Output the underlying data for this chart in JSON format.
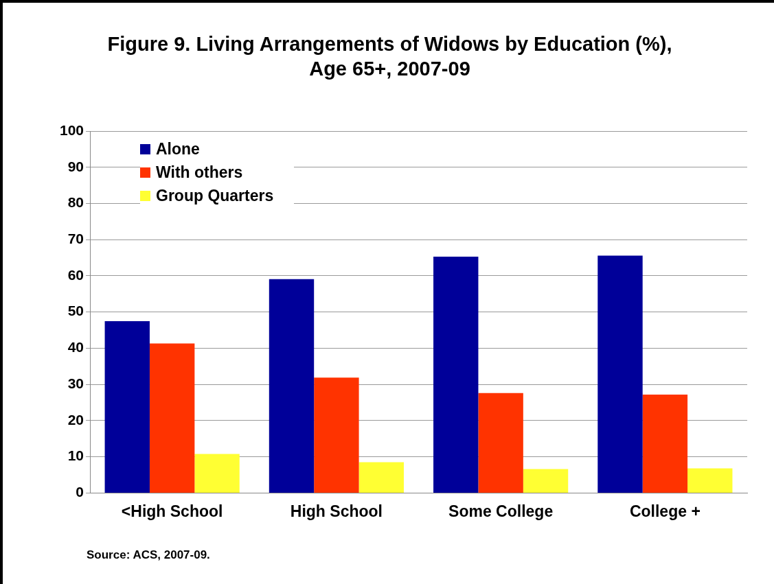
{
  "chart_data": {
    "type": "bar",
    "title": "Figure 9. Living Arrangements of Widows by Education (%),\nAge 65+, 2007-09",
    "categories": [
      "<High School",
      "High School",
      "Some College",
      "College +"
    ],
    "series": [
      {
        "name": "Alone",
        "color": "#000099",
        "values": [
          47.5,
          59.1,
          65.3,
          65.6
        ]
      },
      {
        "name": "With others",
        "color": "#ff3300",
        "values": [
          41.3,
          31.9,
          27.6,
          27.2
        ]
      },
      {
        "name": "Group Quarters",
        "color": "#ffff33",
        "values": [
          10.8,
          8.5,
          6.6,
          6.8
        ]
      }
    ],
    "ylim": [
      0,
      100
    ],
    "yticks": [
      0,
      10,
      20,
      30,
      40,
      50,
      60,
      70,
      80,
      90,
      100
    ],
    "grid": "y",
    "legend": "top left",
    "annotations": [
      "Source:  ACS, 2007-09."
    ]
  }
}
